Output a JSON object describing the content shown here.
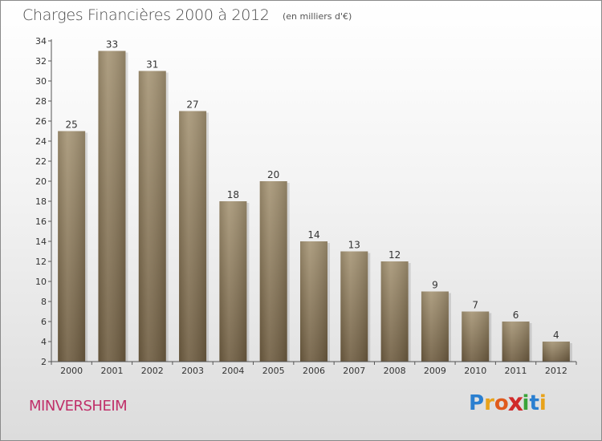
{
  "title": "Charges Financières 2000 à 2012",
  "subtitle": "(en milliers d'€)",
  "commune": "MINVERSHEIM",
  "logo": {
    "letters": [
      "P",
      "r",
      "o",
      "x",
      "i",
      "t",
      "i"
    ],
    "colors": [
      "#2a7fd0",
      "#e8a21a",
      "#e05a1c",
      "#d02a2a",
      "#3aa43a",
      "#2a7fd0",
      "#e8a21a"
    ]
  },
  "colors": {
    "bar_top": "#a59474",
    "bar_bottom": "#6e5c40",
    "title": "#4a4a4a",
    "commune": "#c0306a"
  },
  "chart_data": {
    "type": "bar",
    "categories": [
      "2000",
      "2001",
      "2002",
      "2003",
      "2004",
      "2005",
      "2006",
      "2007",
      "2008",
      "2009",
      "2010",
      "2011",
      "2012"
    ],
    "values": [
      25,
      33,
      31,
      27,
      18,
      20,
      14,
      13,
      12,
      9,
      7,
      6,
      4
    ],
    "title": "Charges Financières 2000 à 2012",
    "xlabel": "",
    "ylabel": "",
    "ylim": [
      2,
      34
    ],
    "yticks": [
      2,
      4,
      6,
      8,
      10,
      12,
      14,
      16,
      18,
      20,
      22,
      24,
      26,
      28,
      30,
      32,
      34
    ],
    "grid": false,
    "legend": "none"
  }
}
